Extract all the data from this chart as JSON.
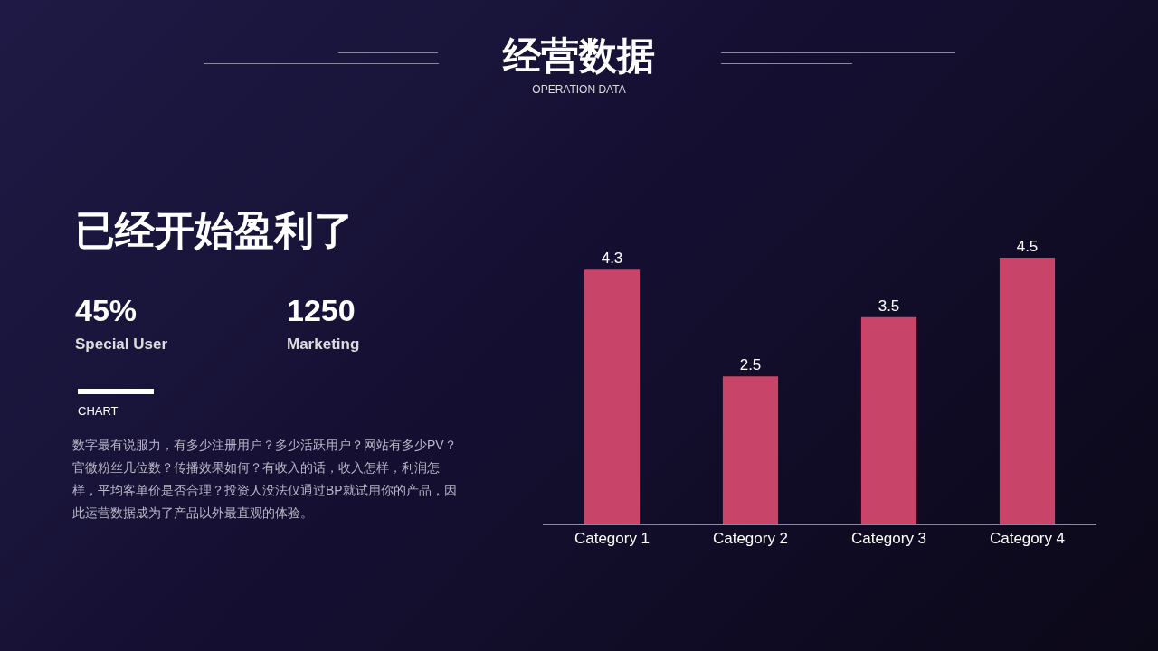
{
  "chart_data": {
    "type": "bar",
    "title": "经营数据",
    "subtitle": "OPERATION DATA",
    "categories": [
      "Category 1",
      "Category 2",
      "Category 3",
      "Category 4"
    ],
    "values": [
      4.3,
      2.5,
      3.5,
      4.5
    ],
    "color": "#c84468",
    "data_labels": true,
    "tick_labels": "x",
    "annotations": [
      "已经开始盈利了",
      "45%",
      "Special User",
      "1250",
      "Marketing",
      "CHART",
      "数字最有说服力，有多少注册用户？多少活跃用户？网站有多少PV？官微粉丝几位数？传播效果如何？有收入的话，收入怎样，利润怎样，平均客单价是否合理？投资人没法仅通过BP就试用你的产品，因此运营数据成为了产品以外最直观的体验。"
    ]
  }
}
